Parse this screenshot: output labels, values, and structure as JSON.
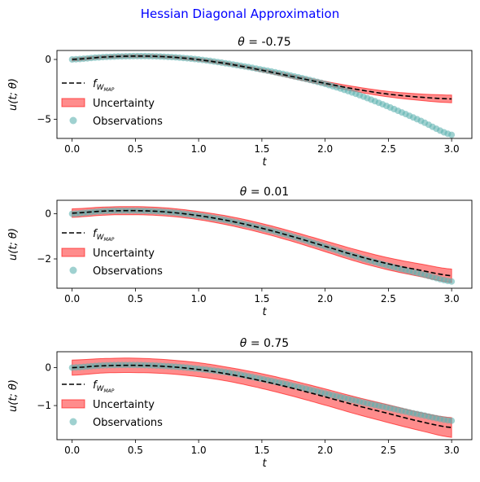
{
  "figure": {
    "suptitle": "Hessian Diagonal Approximation",
    "suptitle_color": "#0000ff"
  },
  "legend": {
    "map_label_base": "f",
    "map_label_sub": "W",
    "map_label_subsub": "MAP",
    "uncertainty_label": "Uncertainty",
    "observations_label": "Observations"
  },
  "colors": {
    "map_line": "#000000",
    "band_fill": "#ff0000",
    "band_edge": "#ff0000",
    "observations": "#5fb3b0"
  },
  "chart_data": [
    {
      "type": "line",
      "title_symbol": "θ",
      "title_value": "= -0.75",
      "xlabel_italic": "t",
      "ylabel": "u(t; θ)",
      "xlim": [
        -0.12,
        3.16
      ],
      "ylim": [
        -6.6,
        0.75
      ],
      "xticks": [
        "0.0",
        "0.5",
        "1.0",
        "1.5",
        "2.0",
        "2.5",
        "3.0"
      ],
      "yticks": [
        0,
        -5
      ],
      "yticklabels": [
        "0",
        "−5"
      ],
      "legend_location": "lower-left",
      "map_x": [
        0,
        0.25,
        0.5,
        0.75,
        1.0,
        1.25,
        1.5,
        1.75,
        2.0,
        2.25,
        2.5,
        2.75,
        3.0
      ],
      "map_y": [
        0.0,
        0.2,
        0.28,
        0.22,
        -0.02,
        -0.4,
        -0.9,
        -1.45,
        -2.0,
        -2.5,
        -2.9,
        -3.15,
        -3.3
      ],
      "band_upper": [
        0.12,
        0.32,
        0.4,
        0.34,
        0.1,
        -0.28,
        -0.77,
        -1.3,
        -1.83,
        -2.3,
        -2.67,
        -2.88,
        -2.98
      ],
      "band_lower": [
        -0.12,
        0.08,
        0.16,
        0.1,
        -0.14,
        -0.52,
        -1.03,
        -1.6,
        -2.17,
        -2.7,
        -3.13,
        -3.42,
        -3.62
      ],
      "obs_x": [
        0,
        0.25,
        0.5,
        0.75,
        1.0,
        1.25,
        1.5,
        1.75,
        2.0,
        2.25,
        2.5,
        2.75,
        3.0
      ],
      "obs_y": [
        0.0,
        0.2,
        0.28,
        0.22,
        0.0,
        -0.38,
        -0.85,
        -1.4,
        -2.05,
        -2.9,
        -3.95,
        -5.1,
        -6.3
      ],
      "obs_count": 100
    },
    {
      "type": "line",
      "title_symbol": "θ",
      "title_value": "= 0.01",
      "xlabel_italic": "t",
      "ylabel": "u(t; θ)",
      "xlim": [
        -0.12,
        3.16
      ],
      "ylim": [
        -3.3,
        0.6
      ],
      "xticks": [
        "0.0",
        "0.5",
        "1.0",
        "1.5",
        "2.0",
        "2.5",
        "3.0"
      ],
      "yticks": [
        0,
        -2
      ],
      "yticklabels": [
        "0",
        "−2"
      ],
      "legend_location": "lower-left",
      "map_x": [
        0,
        0.25,
        0.5,
        0.75,
        1.0,
        1.25,
        1.5,
        1.75,
        2.0,
        2.25,
        2.5,
        2.75,
        3.0
      ],
      "map_y": [
        0.03,
        0.12,
        0.14,
        0.08,
        -0.08,
        -0.32,
        -0.64,
        -1.02,
        -1.44,
        -1.86,
        -2.22,
        -2.5,
        -2.75
      ],
      "band_upper": [
        0.22,
        0.3,
        0.32,
        0.26,
        0.1,
        -0.12,
        -0.43,
        -0.8,
        -1.2,
        -1.6,
        -1.95,
        -2.22,
        -2.45
      ],
      "band_lower": [
        -0.16,
        -0.06,
        -0.04,
        -0.1,
        -0.26,
        -0.52,
        -0.85,
        -1.24,
        -1.68,
        -2.12,
        -2.49,
        -2.78,
        -3.05
      ],
      "obs_x": [
        0,
        0.25,
        0.5,
        0.75,
        1.0,
        1.25,
        1.5,
        1.75,
        2.0,
        2.25,
        2.5,
        2.75,
        3.0
      ],
      "obs_y": [
        0.0,
        0.12,
        0.14,
        0.08,
        -0.08,
        -0.32,
        -0.64,
        -1.02,
        -1.45,
        -1.9,
        -2.3,
        -2.65,
        -3.0
      ],
      "obs_count": 100
    },
    {
      "type": "line",
      "title_symbol": "θ",
      "title_value": "= 0.75",
      "xlabel_italic": "t",
      "ylabel": "u(t; θ)",
      "xlim": [
        -0.12,
        3.16
      ],
      "ylim": [
        -1.9,
        0.42
      ],
      "xticks": [
        "0.0",
        "0.5",
        "1.0",
        "1.5",
        "2.0",
        "2.5",
        "3.0"
      ],
      "yticks": [
        0,
        -1
      ],
      "yticklabels": [
        "0",
        "−1"
      ],
      "legend_location": "lower-left",
      "map_x": [
        0,
        0.25,
        0.5,
        0.75,
        1.0,
        1.25,
        1.5,
        1.75,
        2.0,
        2.25,
        2.5,
        2.75,
        3.0
      ],
      "map_y": [
        0.0,
        0.05,
        0.06,
        0.03,
        -0.05,
        -0.18,
        -0.35,
        -0.55,
        -0.77,
        -1.0,
        -1.21,
        -1.42,
        -1.58
      ],
      "band_upper": [
        0.2,
        0.24,
        0.25,
        0.21,
        0.13,
        0.0,
        -0.16,
        -0.35,
        -0.56,
        -0.78,
        -0.98,
        -1.18,
        -1.32
      ],
      "band_lower": [
        -0.2,
        -0.14,
        -0.13,
        -0.16,
        -0.24,
        -0.37,
        -0.55,
        -0.76,
        -0.99,
        -1.23,
        -1.45,
        -1.66,
        -1.84
      ],
      "obs_x": [
        0,
        0.25,
        0.5,
        0.75,
        1.0,
        1.25,
        1.5,
        1.75,
        2.0,
        2.25,
        2.5,
        2.75,
        3.0
      ],
      "obs_y": [
        0.0,
        0.06,
        0.07,
        0.04,
        -0.03,
        -0.14,
        -0.3,
        -0.48,
        -0.68,
        -0.88,
        -1.06,
        -1.24,
        -1.4
      ],
      "obs_count": 100
    }
  ]
}
